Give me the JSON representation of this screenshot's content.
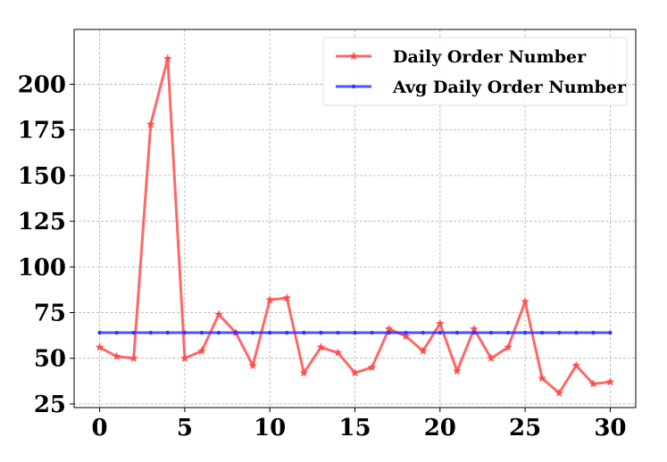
{
  "chart_data": {
    "type": "line",
    "title": "",
    "xlabel": "",
    "ylabel": "",
    "x": [
      0,
      1,
      2,
      3,
      4,
      5,
      6,
      7,
      8,
      9,
      10,
      11,
      12,
      13,
      14,
      15,
      16,
      17,
      18,
      19,
      20,
      21,
      22,
      23,
      24,
      25,
      26,
      27,
      28,
      29,
      30
    ],
    "series": [
      {
        "name": "Daily Order Number",
        "color": "#ff4d4d",
        "marker": "star",
        "values": [
          56,
          51,
          50,
          178,
          214,
          50,
          54,
          74,
          64,
          46,
          82,
          83,
          42,
          56,
          53,
          42,
          45,
          66,
          62,
          54,
          69,
          43,
          66,
          50,
          56,
          81,
          39,
          31,
          46,
          36,
          37
        ]
      },
      {
        "name": "Avg Daily Order Number",
        "color": "#3333ff",
        "marker": "dot",
        "values": [
          64,
          64,
          64,
          64,
          64,
          64,
          64,
          64,
          64,
          64,
          64,
          64,
          64,
          64,
          64,
          64,
          64,
          64,
          64,
          64,
          64,
          64,
          64,
          64,
          64,
          64,
          64,
          64,
          64,
          64,
          64
        ]
      }
    ],
    "xlim": [
      -1.5,
      31.5
    ],
    "ylim": [
      23,
      230
    ],
    "xticks": [
      "0",
      "5",
      "10",
      "15",
      "20",
      "25",
      "30"
    ],
    "yticks": [
      "25",
      "50",
      "75",
      "100",
      "125",
      "150",
      "175",
      "200"
    ],
    "grid": true,
    "legend_position": "top-right"
  }
}
